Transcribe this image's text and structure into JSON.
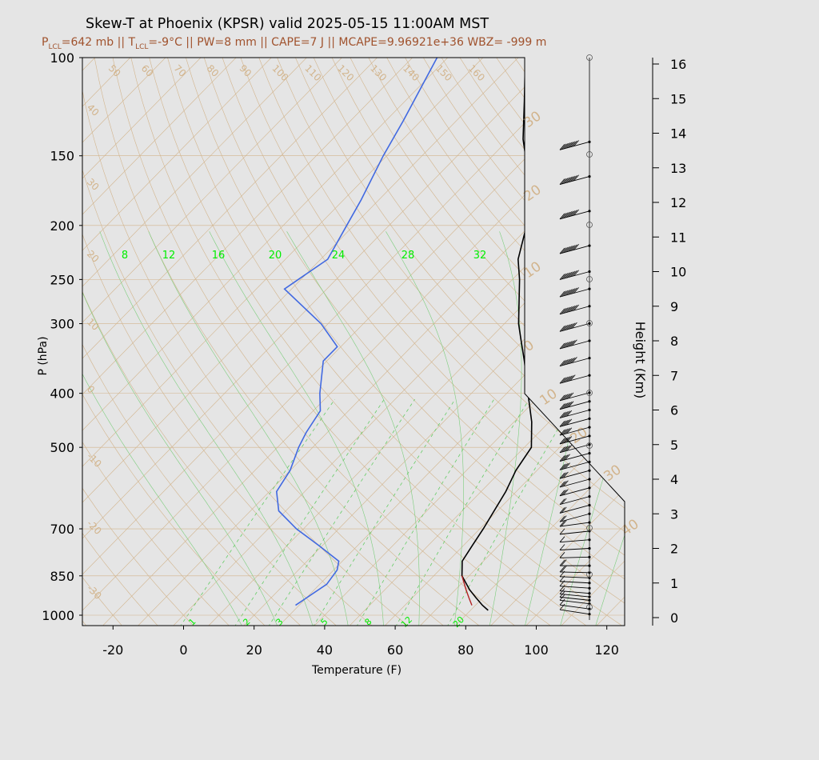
{
  "title": "Skew-T at Phoenix (KPSR) valid 2025-05-15 11:00AM MST",
  "subtitle": {
    "plcl_label": "P",
    "plcl_sub": "LCL",
    "plcl_value": "=642 mb || T",
    "tlcl_sub": "LCL",
    "tlcl_value": "=-9°C || PW=8 mm || CAPE=7 J || MCAPE=9.96921e+36 WBZ= -999 m"
  },
  "colors": {
    "isotherm": "#d2b48c",
    "dry_adiabat": "#d2b48c",
    "moist_adiabat": "#7ccd7c",
    "mixing_ratio": "#66cc66",
    "temperature": "#000000",
    "dewpoint": "#4169e1",
    "parcel": "#b22222",
    "subtitle": "#a0522d"
  },
  "chart_data": {
    "type": "line",
    "title": "Skew-T at Phoenix (KPSR) valid 2025-05-15 11:00AM MST",
    "xlabel": "Temperature (F)",
    "ylabel": "P (hPa)",
    "y2label": "Height (Km)",
    "xlim": [
      -28,
      125
    ],
    "ylim": [
      1025,
      100
    ],
    "yscale": "log",
    "x_ticks": [
      -20,
      0,
      20,
      40,
      60,
      80,
      100,
      120
    ],
    "pressure_ticks": [
      100,
      150,
      200,
      250,
      300,
      400,
      500,
      700,
      850,
      1000
    ],
    "height_ticks": [
      0,
      1,
      2,
      3,
      4,
      5,
      6,
      7,
      8,
      9,
      10,
      11,
      12,
      13,
      14,
      15,
      16
    ],
    "isotherm_labels": [
      "50",
      "60",
      "70",
      "80",
      "90",
      "100",
      "110",
      "120",
      "130",
      "140",
      "150",
      "160",
      "40",
      "30",
      "20",
      "10",
      "0",
      "-10",
      "-20",
      "-30"
    ],
    "theta_labels": [
      "30",
      "20",
      "10",
      "0",
      "10",
      "20",
      "30",
      "40"
    ],
    "mixing_ratio_labels_top": [
      "8",
      "12",
      "16",
      "20",
      "24",
      "28",
      "32"
    ],
    "mixing_ratio_labels_bottom": [
      "1",
      "2",
      "3",
      "5",
      "8",
      "12",
      "20"
    ],
    "series": [
      {
        "role": "temperature",
        "points": [
          {
            "p": 980,
            "t": 85
          },
          {
            "p": 960,
            "t": 82
          },
          {
            "p": 930,
            "t": 78
          },
          {
            "p": 900,
            "t": 74
          },
          {
            "p": 850,
            "t": 68
          },
          {
            "p": 800,
            "t": 64
          },
          {
            "p": 750,
            "t": 62.5
          },
          {
            "p": 700,
            "t": 61
          },
          {
            "p": 600,
            "t": 57
          },
          {
            "p": 550,
            "t": 54
          },
          {
            "p": 500,
            "t": 52
          },
          {
            "p": 450,
            "t": 45
          },
          {
            "p": 400,
            "t": 36
          },
          {
            "p": 350,
            "t": 26
          },
          {
            "p": 320,
            "t": 19
          },
          {
            "p": 300,
            "t": 14
          },
          {
            "p": 250,
            "t": 2
          },
          {
            "p": 230,
            "t": -4
          },
          {
            "p": 200,
            "t": -11
          },
          {
            "p": 170,
            "t": -21
          },
          {
            "p": 140,
            "t": -36
          },
          {
            "p": 120,
            "t": -46
          },
          {
            "p": 100,
            "t": -58
          }
        ]
      },
      {
        "role": "dewpoint",
        "points": [
          {
            "p": 960,
            "t": 29
          },
          {
            "p": 880,
            "t": 32
          },
          {
            "p": 830,
            "t": 31
          },
          {
            "p": 800,
            "t": 29
          },
          {
            "p": 750,
            "t": 19
          },
          {
            "p": 700,
            "t": 8
          },
          {
            "p": 650,
            "t": -2
          },
          {
            "p": 600,
            "t": -8
          },
          {
            "p": 550,
            "t": -10
          },
          {
            "p": 500,
            "t": -14
          },
          {
            "p": 470,
            "t": -16
          },
          {
            "p": 430,
            "t": -18
          },
          {
            "p": 400,
            "t": -23
          },
          {
            "p": 350,
            "t": -31
          },
          {
            "p": 330,
            "t": -31
          },
          {
            "p": 300,
            "t": -42
          },
          {
            "p": 260,
            "t": -62
          },
          {
            "p": 230,
            "t": -58
          },
          {
            "p": 200,
            "t": -62
          },
          {
            "p": 180,
            "t": -65
          },
          {
            "p": 150,
            "t": -71
          },
          {
            "p": 130,
            "t": -75
          },
          {
            "p": 100,
            "t": -83
          }
        ]
      },
      {
        "role": "parcel",
        "points": [
          {
            "p": 960,
            "t": 79
          },
          {
            "p": 930,
            "t": 76
          },
          {
            "p": 900,
            "t": 73
          },
          {
            "p": 850,
            "t": 68
          }
        ]
      }
    ],
    "wind_barbs": {
      "levels_km": [
        0.1,
        0.25,
        0.4,
        0.5,
        0.6,
        0.7,
        0.85,
        1.0,
        1.15,
        1.3,
        1.5,
        1.75,
        2.0,
        2.25,
        2.5,
        2.75,
        3.0,
        3.25,
        3.5,
        3.75,
        4.0,
        4.25,
        4.5,
        4.75,
        5.0,
        5.25,
        5.5,
        5.75,
        6.0,
        6.25,
        6.5,
        7.0,
        7.5,
        8.0,
        8.5,
        9.0,
        9.5,
        10.0,
        10.75,
        11.75,
        12.75,
        13.75
      ],
      "speeds_kt": [
        5,
        5,
        5,
        5,
        5,
        5,
        5,
        5,
        5,
        10,
        10,
        5,
        5,
        5,
        5,
        10,
        10,
        10,
        10,
        15,
        15,
        15,
        20,
        20,
        25,
        25,
        25,
        25,
        25,
        30,
        30,
        35,
        40,
        40,
        40,
        45,
        45,
        45,
        45,
        45,
        45,
        45
      ]
    },
    "grid": true,
    "legend": "none"
  }
}
